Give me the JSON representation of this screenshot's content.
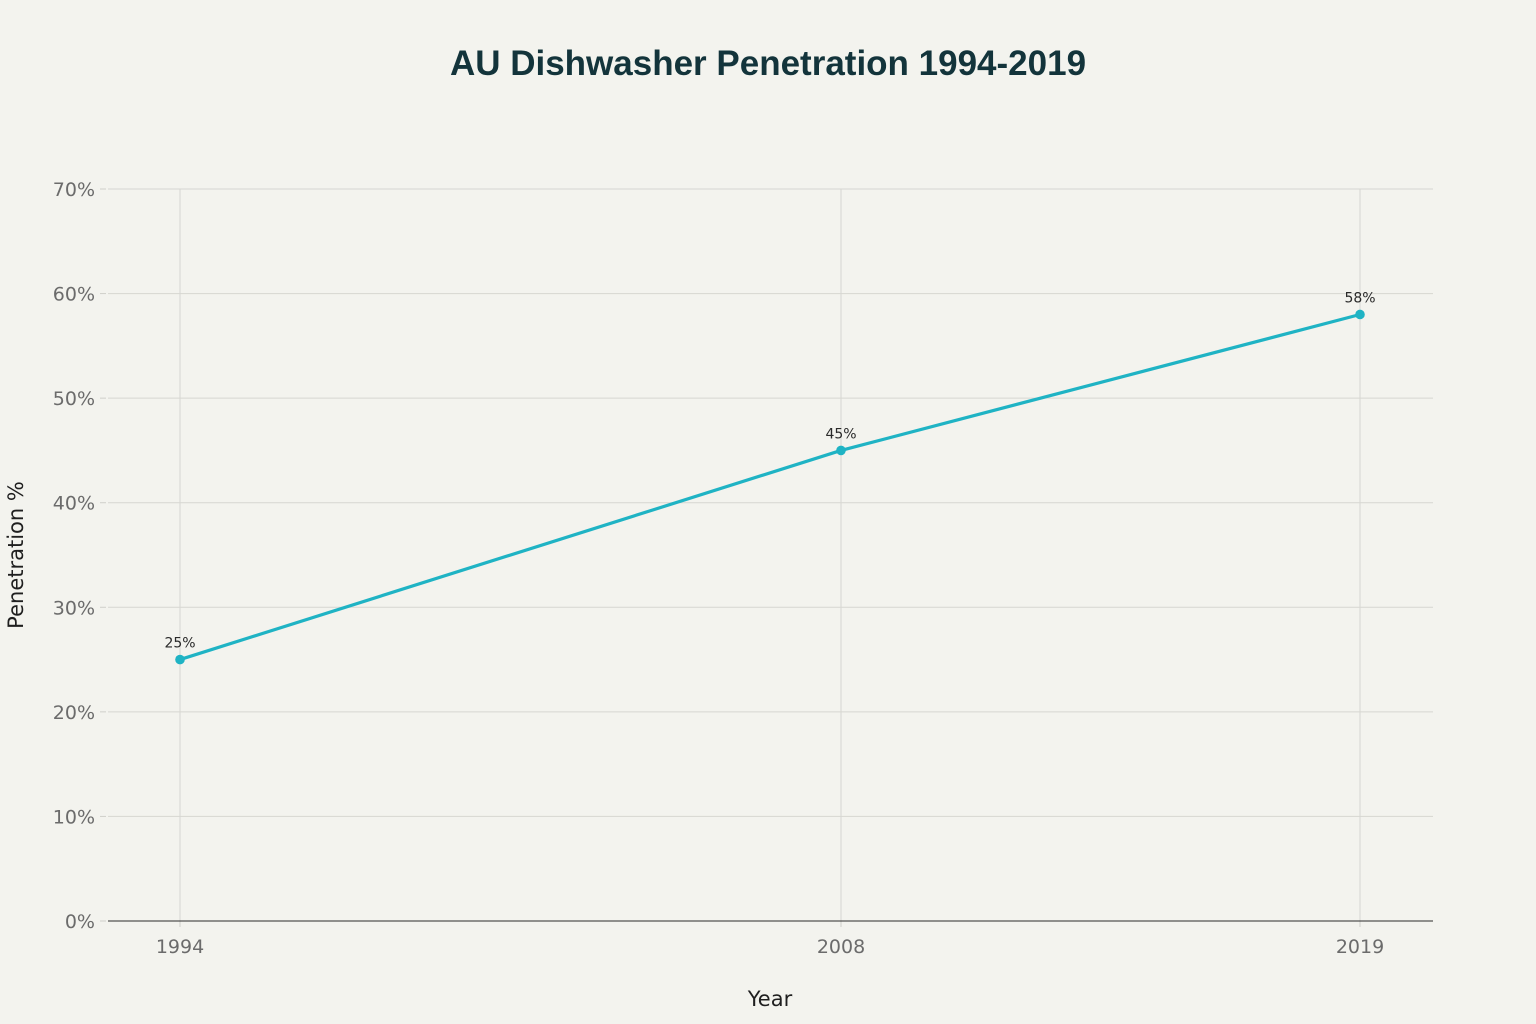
{
  "chart_data": {
    "type": "line",
    "title": "AU Dishwasher Penetration 1994-2019",
    "xlabel": "Year",
    "ylabel": "Penetration %",
    "x": [
      1994,
      2008,
      2019
    ],
    "x_tick_labels": [
      "1994",
      "2008",
      "2019"
    ],
    "series": [
      {
        "values": [
          25,
          45,
          58
        ],
        "data_labels": [
          "25%",
          "45%",
          "58%"
        ],
        "color": "#1fb3c4"
      }
    ],
    "ylim": [
      0,
      70
    ],
    "y_ticks": [
      0,
      10,
      20,
      30,
      40,
      50,
      60,
      70
    ],
    "y_tick_labels": [
      "0%",
      "10%",
      "20%",
      "30%",
      "40%",
      "50%",
      "60%",
      "70%"
    ],
    "grid": true,
    "legend": "none"
  }
}
